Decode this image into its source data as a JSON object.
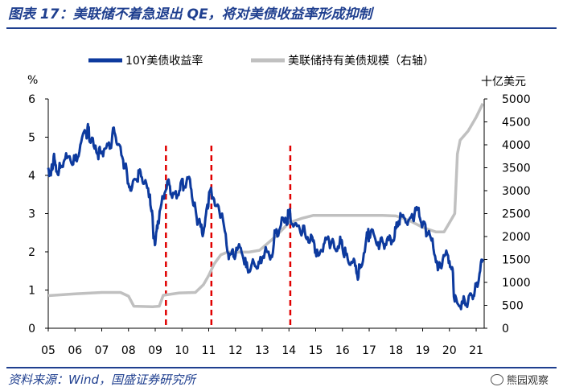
{
  "header": {
    "title": "图表 17：美联储不着急退出 QE，将对美债收益率形成抑制"
  },
  "footer": {
    "source": "资料来源：Wind，国盛证券研究所",
    "watermark": "熊园观察"
  },
  "colors": {
    "yield_line": "#0d3a9e",
    "holdings_line": "#c0c0c0",
    "marker_line": "#e00000",
    "title_text": "#1f3f8f"
  },
  "chart_data": {
    "type": "line",
    "left_axis": {
      "unit_label": "%",
      "min": 0,
      "max": 6,
      "ticks": [
        "0",
        "1",
        "2",
        "3",
        "4",
        "5",
        "6"
      ]
    },
    "right_axis": {
      "unit_label": "十亿美元",
      "min": 0,
      "max": 5000,
      "ticks": [
        "0",
        "500",
        "1000",
        "1500",
        "2000",
        "2500",
        "3000",
        "3500",
        "4000",
        "4500",
        "5000"
      ]
    },
    "x_axis": {
      "min": 2005,
      "max": 2021.3,
      "ticks": [
        "05",
        "06",
        "07",
        "08",
        "09",
        "10",
        "11",
        "12",
        "13",
        "14",
        "15",
        "16",
        "17",
        "18",
        "19",
        "20",
        "21"
      ]
    },
    "legend_position": "top",
    "series": [
      {
        "name": "10Y美债收益率",
        "axis": "left",
        "points": [
          [
            2005.0,
            4.2
          ],
          [
            2005.1,
            4.0
          ],
          [
            2005.2,
            4.5
          ],
          [
            2005.3,
            4.1
          ],
          [
            2005.45,
            4.2
          ],
          [
            2005.6,
            4.4
          ],
          [
            2005.8,
            4.5
          ],
          [
            2006.0,
            4.4
          ],
          [
            2006.2,
            4.8
          ],
          [
            2006.4,
            5.1
          ],
          [
            2006.5,
            5.2
          ],
          [
            2006.6,
            4.9
          ],
          [
            2006.8,
            4.6
          ],
          [
            2006.95,
            4.6
          ],
          [
            2007.1,
            4.7
          ],
          [
            2007.3,
            4.7
          ],
          [
            2007.45,
            5.25
          ],
          [
            2007.6,
            4.8
          ],
          [
            2007.8,
            4.4
          ],
          [
            2007.95,
            4.0
          ],
          [
            2008.1,
            3.6
          ],
          [
            2008.3,
            3.9
          ],
          [
            2008.45,
            4.1
          ],
          [
            2008.6,
            3.8
          ],
          [
            2008.8,
            3.5
          ],
          [
            2008.92,
            2.6
          ],
          [
            2009.0,
            2.2
          ],
          [
            2009.1,
            2.8
          ],
          [
            2009.3,
            3.4
          ],
          [
            2009.45,
            3.85
          ],
          [
            2009.6,
            3.5
          ],
          [
            2009.8,
            3.4
          ],
          [
            2009.95,
            3.8
          ],
          [
            2010.1,
            3.7
          ],
          [
            2010.3,
            3.9
          ],
          [
            2010.45,
            3.2
          ],
          [
            2010.6,
            2.8
          ],
          [
            2010.75,
            2.5
          ],
          [
            2010.9,
            3.0
          ],
          [
            2011.0,
            3.4
          ],
          [
            2011.1,
            3.6
          ],
          [
            2011.3,
            3.2
          ],
          [
            2011.5,
            3.0
          ],
          [
            2011.7,
            2.0
          ],
          [
            2011.85,
            1.95
          ],
          [
            2012.0,
            1.9
          ],
          [
            2012.2,
            2.1
          ],
          [
            2012.4,
            1.6
          ],
          [
            2012.55,
            1.5
          ],
          [
            2012.7,
            1.7
          ],
          [
            2012.9,
            1.7
          ],
          [
            2013.1,
            2.0
          ],
          [
            2013.3,
            1.8
          ],
          [
            2013.5,
            2.5
          ],
          [
            2013.7,
            2.7
          ],
          [
            2013.9,
            2.8
          ],
          [
            2014.0,
            3.0
          ],
          [
            2014.2,
            2.7
          ],
          [
            2014.4,
            2.6
          ],
          [
            2014.6,
            2.5
          ],
          [
            2014.8,
            2.3
          ],
          [
            2014.95,
            2.2
          ],
          [
            2015.1,
            1.9
          ],
          [
            2015.3,
            2.2
          ],
          [
            2015.5,
            2.3
          ],
          [
            2015.7,
            2.1
          ],
          [
            2015.9,
            2.25
          ],
          [
            2016.0,
            2.1
          ],
          [
            2016.2,
            1.8
          ],
          [
            2016.4,
            1.75
          ],
          [
            2016.55,
            1.4
          ],
          [
            2016.7,
            1.6
          ],
          [
            2016.9,
            2.4
          ],
          [
            2017.0,
            2.45
          ],
          [
            2017.2,
            2.4
          ],
          [
            2017.4,
            2.2
          ],
          [
            2017.6,
            2.2
          ],
          [
            2017.8,
            2.35
          ],
          [
            2017.95,
            2.4
          ],
          [
            2018.1,
            2.8
          ],
          [
            2018.3,
            2.9
          ],
          [
            2018.5,
            2.85
          ],
          [
            2018.7,
            3.0
          ],
          [
            2018.85,
            3.15
          ],
          [
            2019.0,
            2.7
          ],
          [
            2019.2,
            2.5
          ],
          [
            2019.4,
            2.1
          ],
          [
            2019.6,
            1.6
          ],
          [
            2019.75,
            1.8
          ],
          [
            2019.95,
            1.9
          ],
          [
            2020.1,
            1.6
          ],
          [
            2020.2,
            0.7
          ],
          [
            2020.3,
            0.65
          ],
          [
            2020.5,
            0.65
          ],
          [
            2020.7,
            0.7
          ],
          [
            2020.85,
            0.85
          ],
          [
            2021.0,
            1.1
          ],
          [
            2021.15,
            1.5
          ],
          [
            2021.25,
            1.75
          ]
        ]
      },
      {
        "name": "美联储持有美债规模（右轴）",
        "axis": "right",
        "points": [
          [
            2005.0,
            710
          ],
          [
            2006.0,
            750
          ],
          [
            2007.0,
            780
          ],
          [
            2007.7,
            780
          ],
          [
            2008.0,
            700
          ],
          [
            2008.2,
            480
          ],
          [
            2008.9,
            470
          ],
          [
            2009.15,
            480
          ],
          [
            2009.3,
            720
          ],
          [
            2009.9,
            770
          ],
          [
            2010.5,
            780
          ],
          [
            2010.8,
            950
          ],
          [
            2011.0,
            1150
          ],
          [
            2011.2,
            1400
          ],
          [
            2011.45,
            1600
          ],
          [
            2011.7,
            1660
          ],
          [
            2012.5,
            1660
          ],
          [
            2012.9,
            1700
          ],
          [
            2013.0,
            1750
          ],
          [
            2013.5,
            2000
          ],
          [
            2014.0,
            2300
          ],
          [
            2014.5,
            2400
          ],
          [
            2014.9,
            2460
          ],
          [
            2015.5,
            2460
          ],
          [
            2017.5,
            2460
          ],
          [
            2018.0,
            2450
          ],
          [
            2018.5,
            2350
          ],
          [
            2019.0,
            2200
          ],
          [
            2019.5,
            2100
          ],
          [
            2019.8,
            2100
          ],
          [
            2020.0,
            2300
          ],
          [
            2020.2,
            2500
          ],
          [
            2020.3,
            3800
          ],
          [
            2020.4,
            4100
          ],
          [
            2020.7,
            4300
          ],
          [
            2021.0,
            4600
          ],
          [
            2021.25,
            4900
          ]
        ]
      }
    ],
    "vertical_markers": [
      2009.4,
      2011.1,
      2014.05
    ]
  }
}
